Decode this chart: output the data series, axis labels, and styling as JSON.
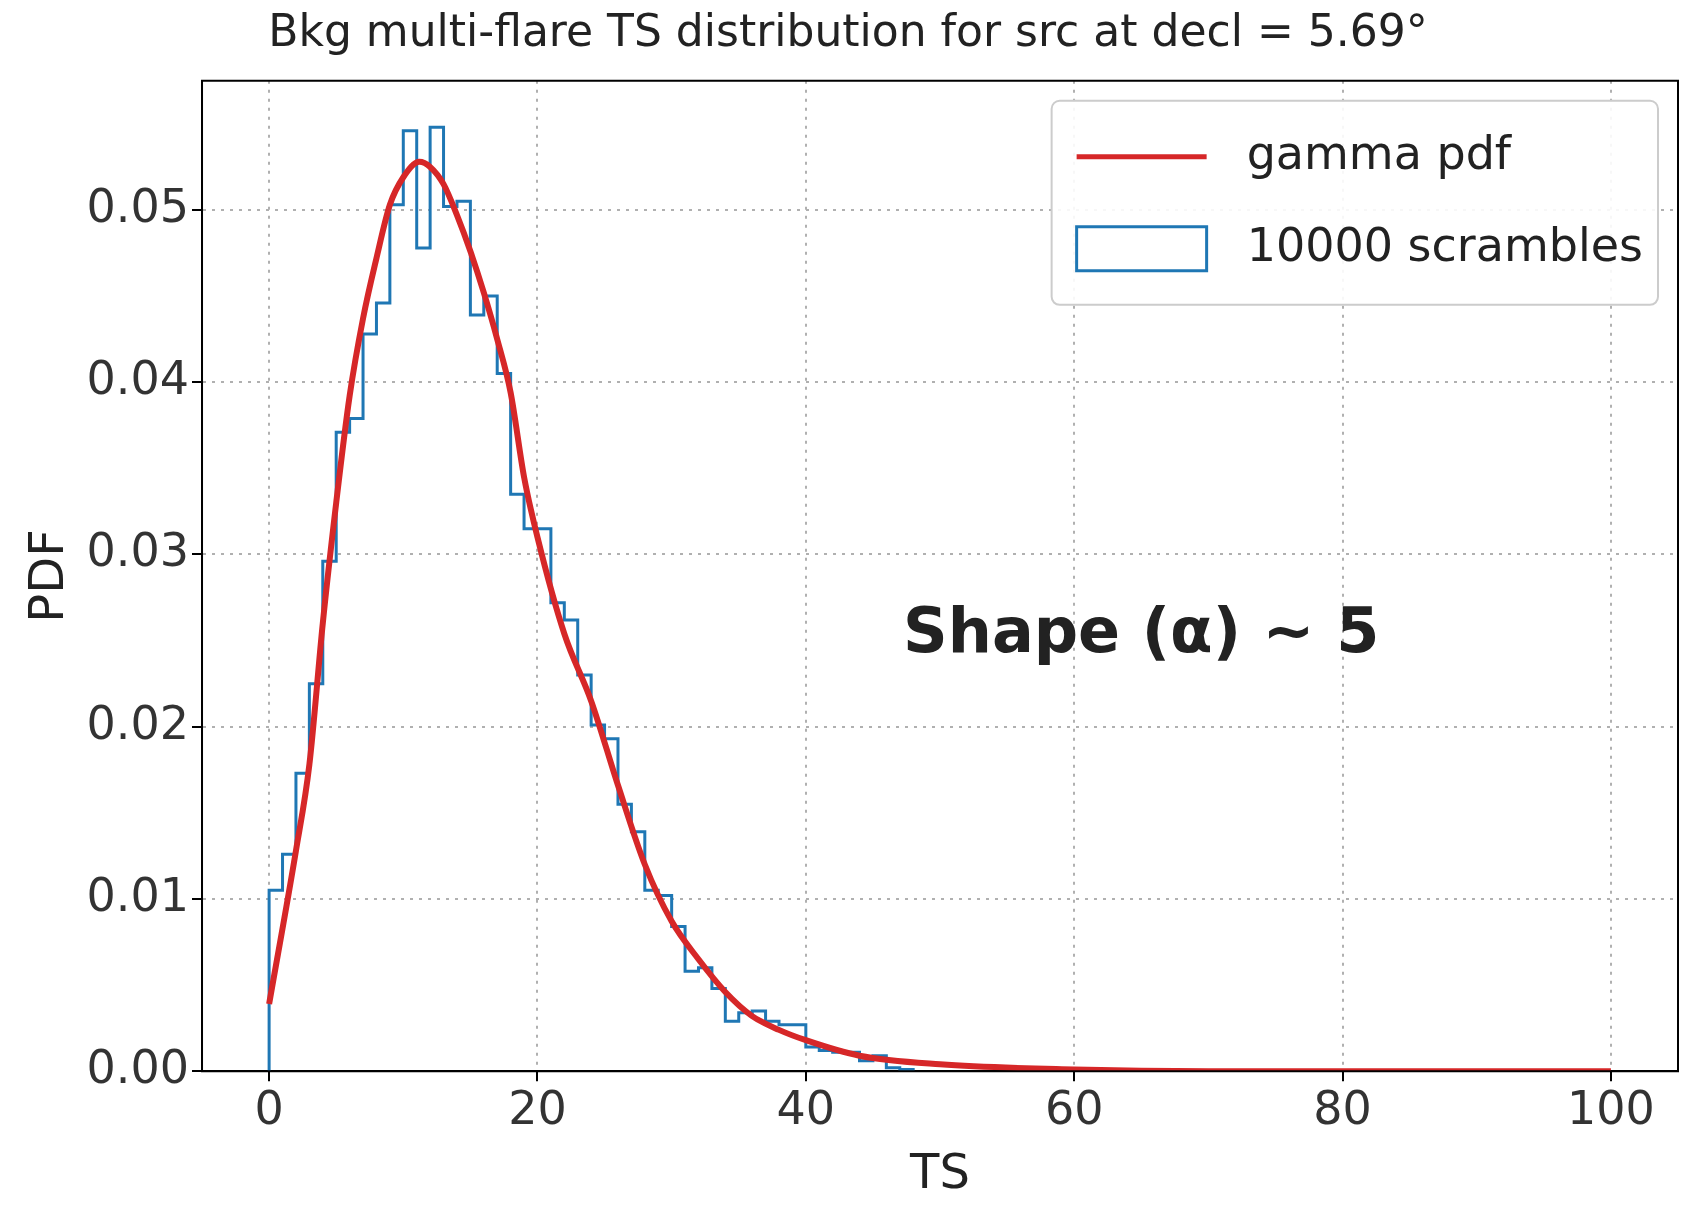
{
  "chart_data": {
    "type": "histogram",
    "title": "Bkg multi-flare TS distribution for src at decl = 5.69°",
    "xlabel": "TS",
    "ylabel": "PDF",
    "xlim": [
      -5,
      105
    ],
    "xticks": [
      0,
      20,
      40,
      60,
      80,
      100
    ],
    "ylim": [
      0,
      0.0575
    ],
    "yticks": [
      {
        "value": 0,
        "label": "0.00"
      },
      {
        "value": 0.01,
        "label": "0.01"
      },
      {
        "value": 0.02,
        "label": "0.02"
      },
      {
        "value": 0.03,
        "label": "0.03"
      },
      {
        "value": 0.04,
        "label": "0.04"
      },
      {
        "value": 0.05,
        "label": "0.05"
      }
    ],
    "grid": true,
    "legend": "top right",
    "annotations": [
      "Shape (α) ~ 5"
    ],
    "series": [
      {
        "name": "gamma pdf",
        "type": "line",
        "color": "#d62728",
        "x": [
          0,
          2,
          3,
          4,
          5,
          6,
          7,
          8,
          9,
          10,
          11.2,
          12,
          13,
          14,
          15,
          16,
          17,
          18,
          19,
          20,
          22,
          24,
          26,
          28,
          30,
          32,
          34,
          36,
          38,
          40,
          44,
          50,
          60,
          70,
          80,
          90,
          100
        ],
        "values": [
          0.0039,
          0.0128,
          0.0178,
          0.026,
          0.033,
          0.0392,
          0.0437,
          0.0472,
          0.0503,
          0.0519,
          0.0528,
          0.0525,
          0.0515,
          0.0497,
          0.0476,
          0.0452,
          0.0425,
          0.0394,
          0.0345,
          0.031,
          0.0254,
          0.0215,
          0.0166,
          0.012,
          0.0087,
          0.0065,
          0.0046,
          0.0032,
          0.0024,
          0.0018,
          0.0009,
          0.0004,
          0.0001,
          0,
          0,
          0,
          0
        ]
      },
      {
        "name": "10000 scrambles",
        "type": "histogram",
        "color": "#1f77b4",
        "bins": [
          0,
          1,
          2,
          3,
          4,
          5,
          6,
          7,
          8,
          9,
          10,
          11,
          12,
          13,
          14,
          15,
          16,
          17,
          18,
          19,
          20,
          21,
          22,
          23,
          24,
          25,
          26,
          27,
          28,
          29,
          30,
          31,
          32,
          33,
          34,
          35,
          36,
          37,
          38,
          39,
          40,
          41,
          42,
          43,
          44,
          45,
          46,
          47,
          48
        ],
        "values": [
          0.0105,
          0.0126,
          0.0173,
          0.0225,
          0.0296,
          0.0371,
          0.0379,
          0.0428,
          0.0446,
          0.0503,
          0.0546,
          0.0478,
          0.0548,
          0.0502,
          0.0505,
          0.0439,
          0.045,
          0.0405,
          0.0335,
          0.0315,
          0.0315,
          0.0272,
          0.0262,
          0.023,
          0.0201,
          0.0193,
          0.0155,
          0.0139,
          0.0105,
          0.0102,
          0.0084,
          0.0058,
          0.006,
          0.0048,
          0.0029,
          0.0034,
          0.0035,
          0.0029,
          0.0027,
          0.0027,
          0.0014,
          0.0012,
          0.0011,
          0.0011,
          0.0006,
          0.0009,
          0.0002,
          0.0001
        ]
      }
    ]
  }
}
